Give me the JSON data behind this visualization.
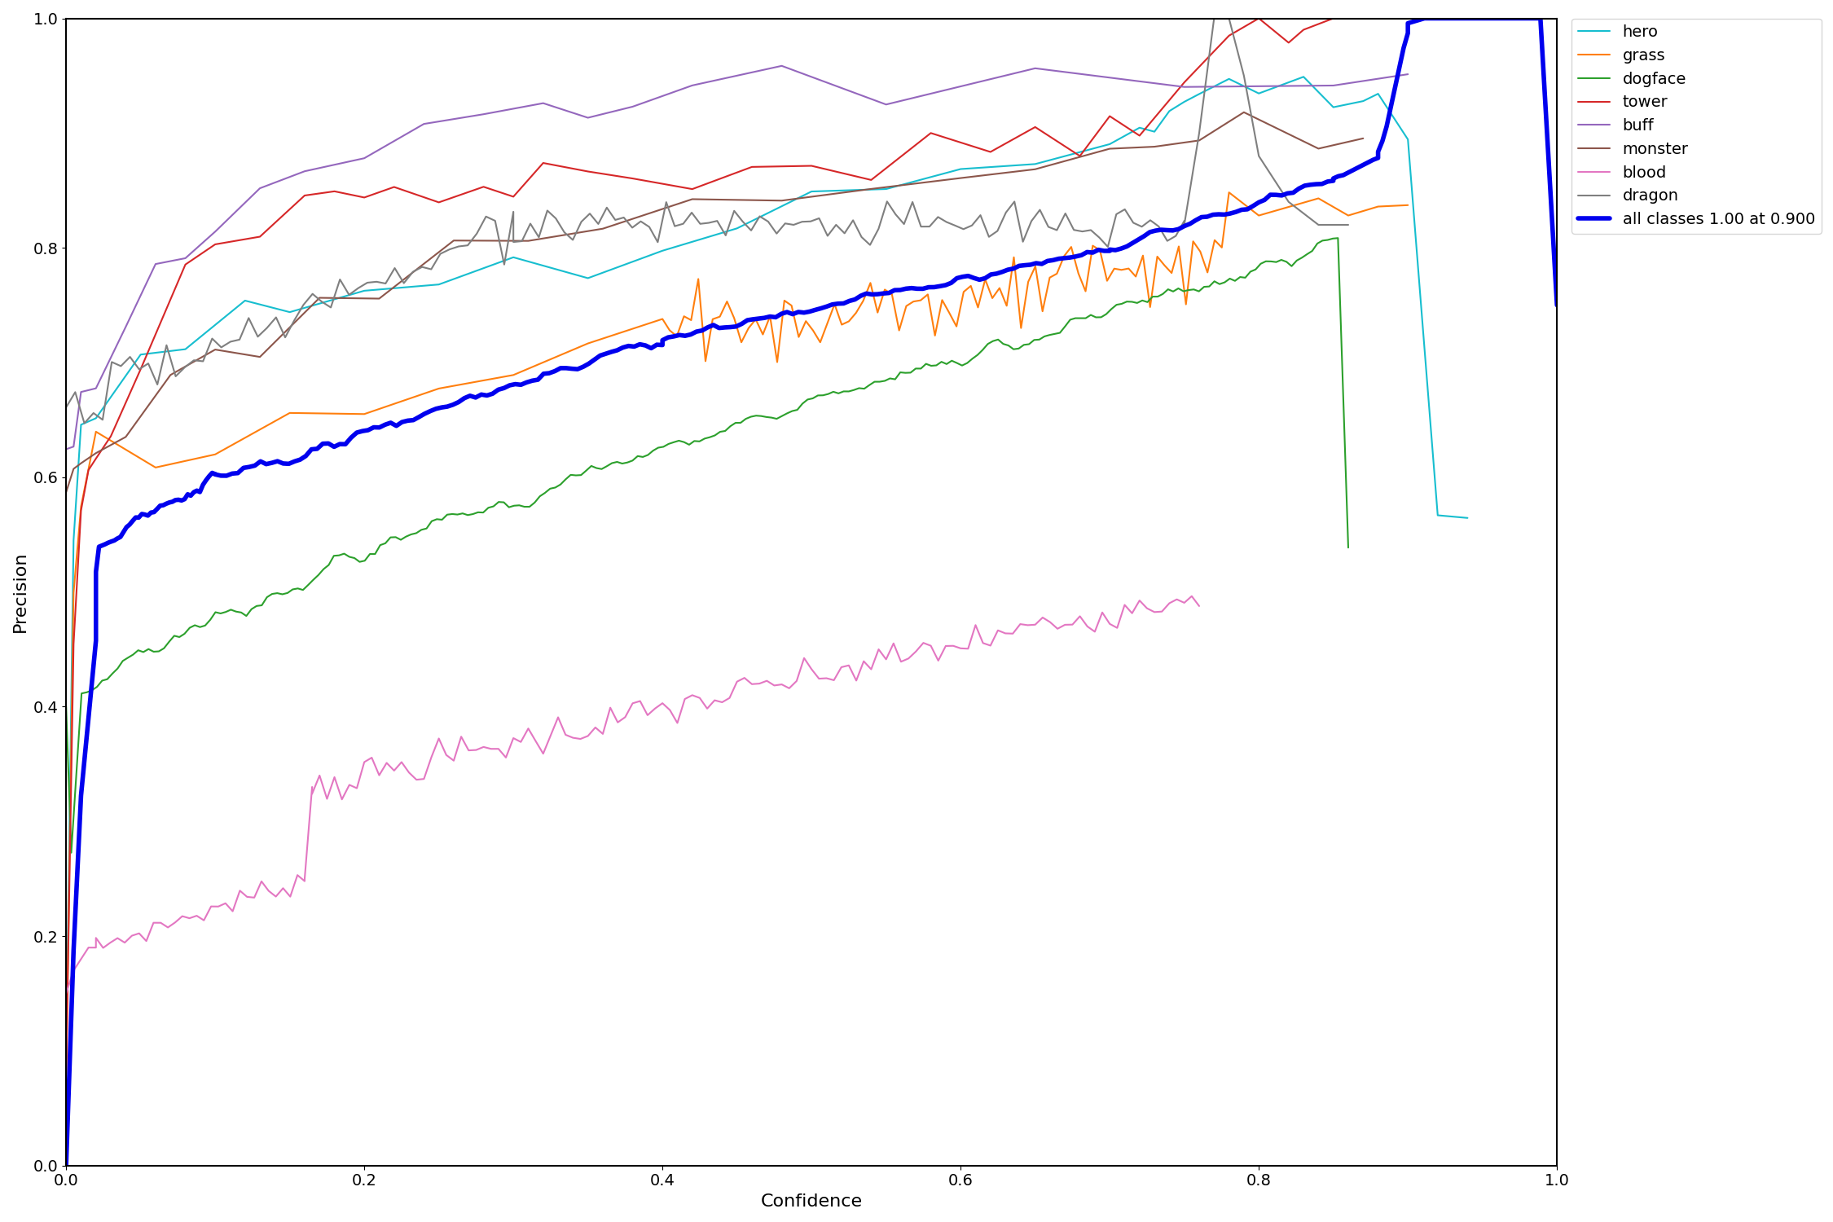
{
  "xlabel": "Confidence",
  "ylabel": "Precision",
  "xlim": [
    0.0,
    1.0
  ],
  "ylim": [
    0.0,
    1.0
  ],
  "legend_entries": [
    "hero",
    "grass",
    "dogface",
    "tower",
    "buff",
    "monster",
    "blood",
    "dragon",
    "all classes 1.00 at 0.900"
  ],
  "colors": {
    "hero": "#17becf",
    "grass": "#ff7f0e",
    "dogface": "#2ca02c",
    "tower": "#d62728",
    "buff": "#9467bd",
    "monster": "#8c564b",
    "blood": "#e377c2",
    "dragon": "#7f7f7f",
    "all": "#0000ee"
  },
  "linewidths": {
    "hero": 1.5,
    "grass": 1.5,
    "dogface": 1.5,
    "tower": 1.5,
    "buff": 1.5,
    "monster": 1.5,
    "blood": 1.5,
    "dragon": 1.5,
    "all": 4.0
  }
}
